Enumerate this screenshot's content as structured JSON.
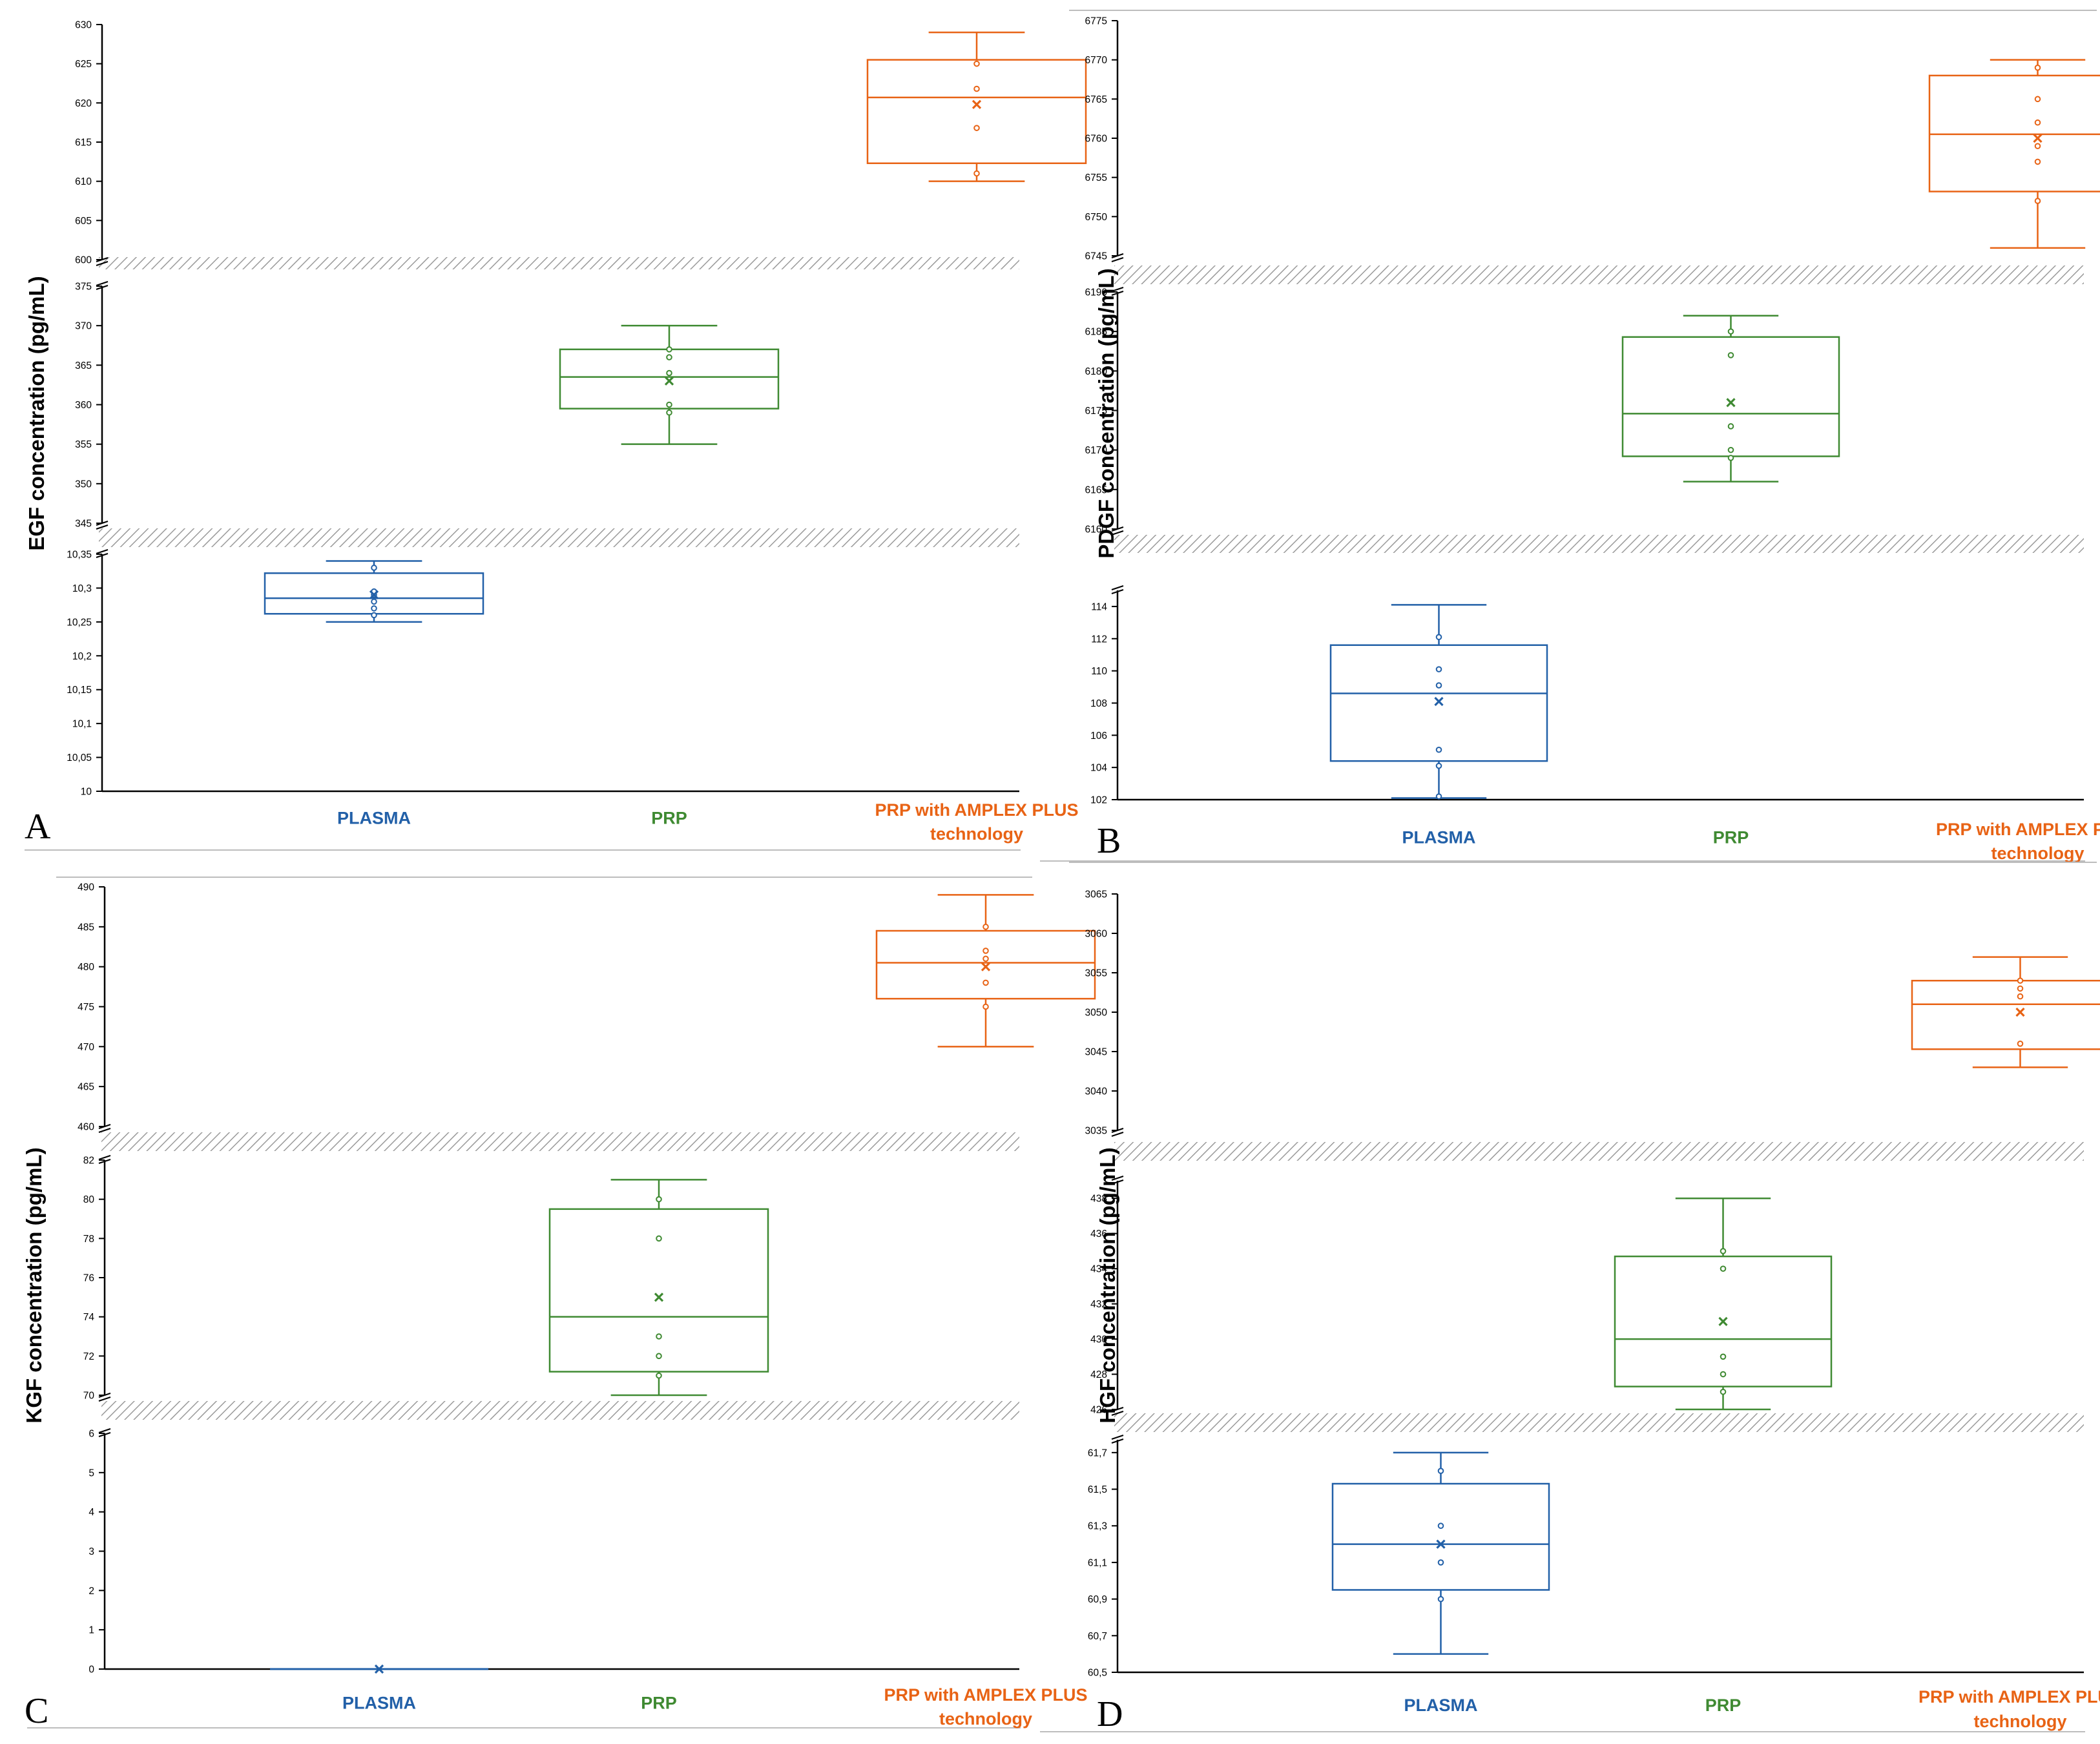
{
  "colors": {
    "plasma": "#2260a8",
    "prp": "#3f8a32",
    "amplex": "#e86315",
    "axis": "#000000",
    "hatch": "#9a9a9a"
  },
  "chart_data": [
    {
      "type": "boxplot",
      "panel": "A",
      "ylabel": "EGF concentration (pg/mL)",
      "categories": [
        "PLASMA",
        "PRP",
        "PRP  with AMPLEX PLUS technology"
      ],
      "category_lines": [
        [
          "PLASMA"
        ],
        [
          "PRP"
        ],
        [
          "PRP  with AMPLEX PLUS",
          "technology"
        ]
      ],
      "segments": [
        {
          "range": [
            10,
            10.35
          ],
          "ticks": [
            "10",
            "10,05",
            "10,1",
            "10,15",
            "10,2",
            "10,25",
            "10,3",
            "10,35"
          ]
        },
        {
          "range": [
            345,
            375
          ],
          "ticks": [
            "345",
            "350",
            "355",
            "360",
            "365",
            "370",
            "375"
          ]
        },
        {
          "range": [
            600,
            630
          ],
          "ticks": [
            "600",
            "605",
            "610",
            "615",
            "620",
            "625",
            "630"
          ]
        }
      ],
      "boxes": [
        {
          "name": "PLASMA",
          "segment": 0,
          "min": 10.25,
          "q1": 10.262,
          "median": 10.285,
          "q3": 10.322,
          "max": 10.34,
          "mean": 10.29,
          "points": [
            10.26,
            10.27,
            10.28,
            10.29,
            10.295,
            10.33
          ]
        },
        {
          "name": "PRP",
          "segment": 1,
          "min": 355,
          "q1": 359.5,
          "median": 363.5,
          "q3": 367,
          "max": 370,
          "mean": 363,
          "points": [
            359,
            360,
            364,
            366,
            367
          ]
        },
        {
          "name": "PRP  with AMPLEX PLUS technology",
          "segment": 2,
          "min": 610,
          "q1": 612.3,
          "median": 620.7,
          "q3": 625.5,
          "max": 629,
          "mean": 619.8,
          "points": [
            611,
            616.8,
            621.8,
            625
          ]
        }
      ]
    },
    {
      "type": "boxplot",
      "panel": "B",
      "ylabel": "PDGF concentration (pg/mL)",
      "categories": [
        "PLASMA",
        "PRP",
        "PRP  with AMPLEX PLUS technology"
      ],
      "category_lines": [
        [
          "PLASMA"
        ],
        [
          "PRP"
        ],
        [
          "PRP  with AMPLEX PLUS",
          "technology"
        ]
      ],
      "segments": [
        {
          "range": [
            102,
            115
          ],
          "ticks": [
            "102",
            "104",
            "106",
            "108",
            "110",
            "112",
            "114"
          ]
        },
        {
          "range": [
            6160,
            6190
          ],
          "ticks": [
            "6160",
            "6165",
            "6170",
            "6175",
            "6180",
            "6185",
            "6190"
          ]
        },
        {
          "range": [
            6745,
            6775
          ],
          "ticks": [
            "6745",
            "6750",
            "6755",
            "6760",
            "6765",
            "6770",
            "6775"
          ]
        }
      ],
      "boxes": [
        {
          "name": "PLASMA",
          "segment": 0,
          "min": 102.1,
          "q1": 104.4,
          "median": 108.6,
          "q3": 111.6,
          "max": 114.1,
          "mean": 108.1,
          "points": [
            102.2,
            104.1,
            105.1,
            109.1,
            110.1,
            112.1
          ]
        },
        {
          "name": "PRP",
          "segment": 1,
          "min": 6166,
          "q1": 6169.2,
          "median": 6174.6,
          "q3": 6184.3,
          "max": 6187,
          "mean": 6176,
          "points": [
            6169,
            6170,
            6173,
            6182,
            6185
          ]
        },
        {
          "name": "PRP  with AMPLEX PLUS technology",
          "segment": 2,
          "min": 6746,
          "q1": 6753.2,
          "median": 6760.5,
          "q3": 6768,
          "max": 6770,
          "mean": 6760,
          "points": [
            6752,
            6757,
            6759,
            6762,
            6765,
            6769
          ]
        }
      ]
    },
    {
      "type": "boxplot",
      "panel": "C",
      "ylabel": "KGF concentration (pg/mL)",
      "categories": [
        "PLASMA",
        "PRP",
        "PRP  with AMPLEX PLUS technology"
      ],
      "category_lines": [
        [
          "PLASMA"
        ],
        [
          "PRP"
        ],
        [
          "PRP  with AMPLEX PLUS",
          "technology"
        ]
      ],
      "segments": [
        {
          "range": [
            0,
            6
          ],
          "ticks": [
            "0",
            "1",
            "2",
            "3",
            "4",
            "5",
            "6"
          ]
        },
        {
          "range": [
            70,
            82
          ],
          "ticks": [
            "70",
            "72",
            "74",
            "76",
            "78",
            "80",
            "82"
          ]
        },
        {
          "range": [
            460,
            490
          ],
          "ticks": [
            "460",
            "465",
            "470",
            "475",
            "480",
            "485",
            "490"
          ]
        }
      ],
      "boxes": [
        {
          "name": "PLASMA",
          "segment": 0,
          "min": 0,
          "q1": 0,
          "median": 0,
          "q3": 0,
          "max": 0,
          "mean": 0,
          "points": []
        },
        {
          "name": "PRP",
          "segment": 1,
          "min": 70,
          "q1": 71.2,
          "median": 74,
          "q3": 79.5,
          "max": 81,
          "mean": 75,
          "points": [
            71,
            72,
            73,
            78,
            80
          ]
        },
        {
          "name": "PRP  with AMPLEX PLUS technology",
          "segment": 2,
          "min": 470,
          "q1": 476,
          "median": 480.5,
          "q3": 484.5,
          "max": 489,
          "mean": 480,
          "points": [
            475,
            478,
            481,
            482,
            485
          ]
        }
      ]
    },
    {
      "type": "boxplot",
      "panel": "D",
      "ylabel": "HGF concentration (pg/mL)",
      "categories": [
        "PLASMA",
        "PRP",
        "PRP  with AMPLEX PLUS technology"
      ],
      "category_lines": [
        [
          "PLASMA"
        ],
        [
          "PRP"
        ],
        [
          "PRP  with AMPLEX PLUS",
          "technology"
        ]
      ],
      "segments": [
        {
          "range": [
            60.5,
            61.77
          ],
          "ticks": [
            "60,5",
            "60,7",
            "60,9",
            "61,1",
            "61,3",
            "61,5",
            "61,7"
          ]
        },
        {
          "range": [
            426,
            439
          ],
          "ticks": [
            "426",
            "428",
            "430",
            "432",
            "434",
            "436",
            "438"
          ]
        },
        {
          "range": [
            3035,
            3065
          ],
          "ticks": [
            "3035",
            "3040",
            "3045",
            "3050",
            "3055",
            "3060",
            "3065"
          ]
        }
      ],
      "boxes": [
        {
          "name": "PLASMA",
          "segment": 0,
          "min": 60.6,
          "q1": 60.95,
          "median": 61.2,
          "q3": 61.53,
          "max": 61.7,
          "mean": 61.2,
          "points": [
            60.9,
            61.1,
            61.3,
            61.6
          ]
        },
        {
          "name": "PRP",
          "segment": 1,
          "min": 426,
          "q1": 427.3,
          "median": 430,
          "q3": 434.7,
          "max": 438,
          "mean": 431,
          "points": [
            427,
            428,
            429,
            434,
            435
          ]
        },
        {
          "name": "PRP  with AMPLEX PLUS technology",
          "segment": 2,
          "min": 3043,
          "q1": 3045.3,
          "median": 3051,
          "q3": 3054,
          "max": 3057,
          "mean": 3050,
          "points": [
            3046,
            3052,
            3053,
            3054
          ]
        }
      ]
    }
  ]
}
